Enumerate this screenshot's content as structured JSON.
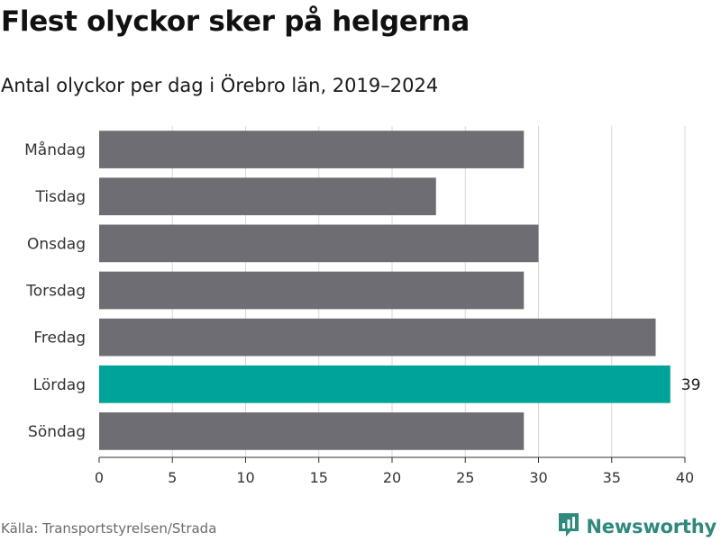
{
  "header": {
    "title": "Flest olyckor sker på helgerna",
    "subtitle": "Antal olyckor per dag i Örebro län, 2019–2024"
  },
  "footer": {
    "source": "Källa: Transportstyrelsen/Strada",
    "brand": "Newsworthy"
  },
  "colors": {
    "bar_default": "#6e6d73",
    "bar_highlight": "#00a398",
    "grid": "#d9d9d9",
    "axis": "#333333",
    "brand": "#2f8a7c"
  },
  "icons": {
    "brand_logo": "newsworthy-logo-icon"
  },
  "chart_data": {
    "type": "bar",
    "orientation": "horizontal",
    "categories": [
      "Måndag",
      "Tisdag",
      "Onsdag",
      "Torsdag",
      "Fredag",
      "Lördag",
      "Söndag"
    ],
    "values": [
      29,
      23,
      30,
      29,
      38,
      39,
      29
    ],
    "highlight": "Lördag",
    "data_labels": {
      "Lördag": "39"
    },
    "xlim": [
      0,
      40
    ],
    "xticks": [
      0,
      5,
      10,
      15,
      20,
      25,
      30,
      35,
      40
    ],
    "grid": true,
    "legend": "none"
  }
}
